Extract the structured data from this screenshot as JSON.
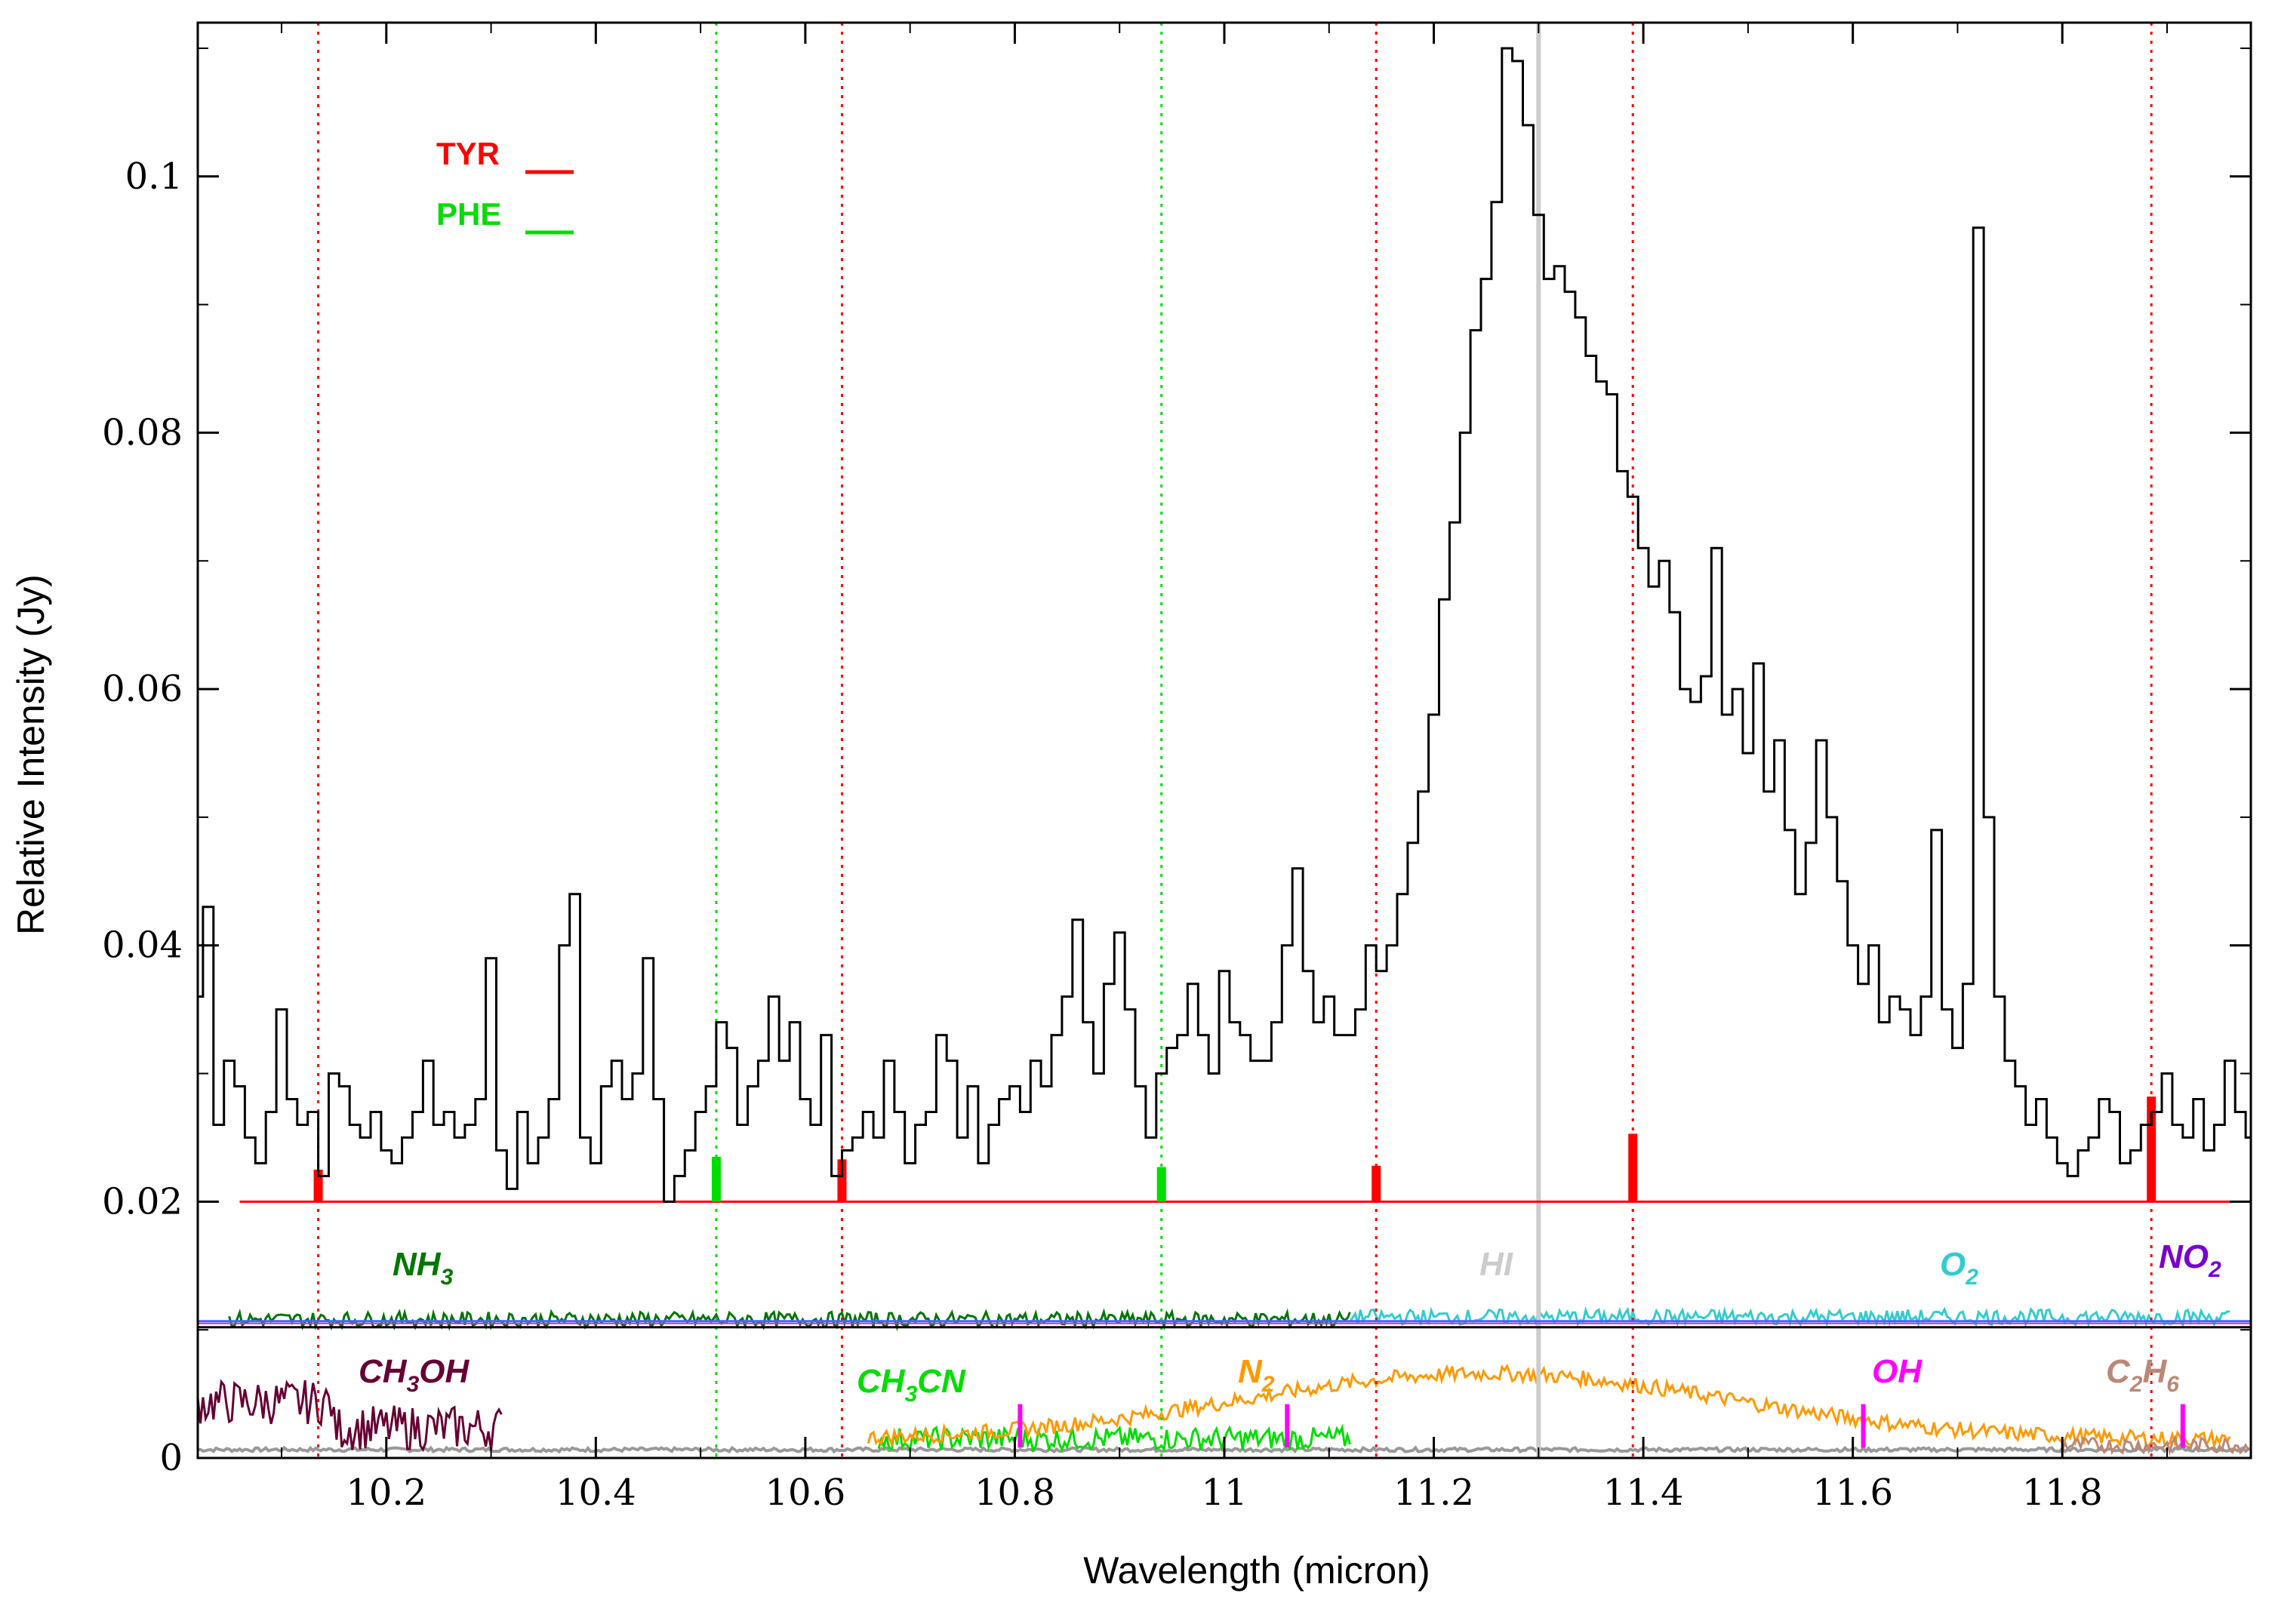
{
  "chart_data": {
    "type": "line",
    "xlabel": "Wavelength (micron)",
    "ylabel": "Relative Intensity (Jy)",
    "xlim": [
      10.02,
      11.98
    ],
    "ylim": [
      0,
      0.112
    ],
    "xticks": [
      10.2,
      10.4,
      10.6,
      10.8,
      11,
      11.2,
      11.4,
      11.6,
      11.8
    ],
    "xtick_labels": [
      "10.2",
      "10.4",
      "10.6",
      "10.8",
      "11",
      "11.2",
      "11.4",
      "11.6",
      "11.8"
    ],
    "yticks": [
      0,
      0.02,
      0.04,
      0.06,
      0.08,
      0.1
    ],
    "ytick_labels": [
      "0",
      "0.02",
      "0.04",
      "0.06",
      "0.08",
      "0.1"
    ],
    "grid": false,
    "legend": {
      "placement": "top-left",
      "entries": [
        {
          "label": "TYR",
          "color": "#ff0000"
        },
        {
          "label": "PHE",
          "color": "#00dd00"
        }
      ]
    },
    "observed_spectrum": {
      "style": "step",
      "color": "#000000",
      "points": [
        [
          10.02,
          0.036
        ],
        [
          10.03,
          0.043
        ],
        [
          10.04,
          0.026
        ],
        [
          10.05,
          0.031
        ],
        [
          10.06,
          0.029
        ],
        [
          10.07,
          0.025
        ],
        [
          10.08,
          0.023
        ],
        [
          10.09,
          0.027
        ],
        [
          10.1,
          0.035
        ],
        [
          10.11,
          0.028
        ],
        [
          10.12,
          0.026
        ],
        [
          10.13,
          0.027
        ],
        [
          10.14,
          0.022
        ],
        [
          10.15,
          0.03
        ],
        [
          10.16,
          0.029
        ],
        [
          10.17,
          0.026
        ],
        [
          10.18,
          0.025
        ],
        [
          10.19,
          0.027
        ],
        [
          10.2,
          0.024
        ],
        [
          10.21,
          0.023
        ],
        [
          10.22,
          0.025
        ],
        [
          10.23,
          0.027
        ],
        [
          10.24,
          0.031
        ],
        [
          10.25,
          0.026
        ],
        [
          10.26,
          0.027
        ],
        [
          10.27,
          0.025
        ],
        [
          10.28,
          0.026
        ],
        [
          10.29,
          0.028
        ],
        [
          10.3,
          0.039
        ],
        [
          10.31,
          0.024
        ],
        [
          10.32,
          0.021
        ],
        [
          10.33,
          0.027
        ],
        [
          10.34,
          0.023
        ],
        [
          10.35,
          0.025
        ],
        [
          10.36,
          0.028
        ],
        [
          10.37,
          0.04
        ],
        [
          10.38,
          0.044
        ],
        [
          10.39,
          0.025
        ],
        [
          10.4,
          0.023
        ],
        [
          10.41,
          0.029
        ],
        [
          10.42,
          0.031
        ],
        [
          10.43,
          0.028
        ],
        [
          10.44,
          0.03
        ],
        [
          10.45,
          0.039
        ],
        [
          10.46,
          0.028
        ],
        [
          10.47,
          0.02
        ],
        [
          10.48,
          0.022
        ],
        [
          10.49,
          0.024
        ],
        [
          10.5,
          0.027
        ],
        [
          10.51,
          0.029
        ],
        [
          10.52,
          0.034
        ],
        [
          10.53,
          0.032
        ],
        [
          10.54,
          0.026
        ],
        [
          10.55,
          0.029
        ],
        [
          10.56,
          0.031
        ],
        [
          10.57,
          0.036
        ],
        [
          10.58,
          0.031
        ],
        [
          10.59,
          0.034
        ],
        [
          10.6,
          0.028
        ],
        [
          10.61,
          0.026
        ],
        [
          10.62,
          0.033
        ],
        [
          10.63,
          0.022
        ],
        [
          10.64,
          0.024
        ],
        [
          10.65,
          0.025
        ],
        [
          10.66,
          0.027
        ],
        [
          10.67,
          0.025
        ],
        [
          10.68,
          0.031
        ],
        [
          10.69,
          0.027
        ],
        [
          10.7,
          0.023
        ],
        [
          10.71,
          0.026
        ],
        [
          10.72,
          0.027
        ],
        [
          10.73,
          0.033
        ],
        [
          10.74,
          0.031
        ],
        [
          10.75,
          0.025
        ],
        [
          10.76,
          0.029
        ],
        [
          10.77,
          0.023
        ],
        [
          10.78,
          0.026
        ],
        [
          10.79,
          0.028
        ],
        [
          10.8,
          0.029
        ],
        [
          10.81,
          0.027
        ],
        [
          10.82,
          0.031
        ],
        [
          10.83,
          0.029
        ],
        [
          10.84,
          0.033
        ],
        [
          10.85,
          0.036
        ],
        [
          10.86,
          0.042
        ],
        [
          10.87,
          0.034
        ],
        [
          10.88,
          0.03
        ],
        [
          10.89,
          0.037
        ],
        [
          10.9,
          0.041
        ],
        [
          10.91,
          0.035
        ],
        [
          10.92,
          0.029
        ],
        [
          10.93,
          0.025
        ],
        [
          10.94,
          0.03
        ],
        [
          10.95,
          0.032
        ],
        [
          10.96,
          0.033
        ],
        [
          10.97,
          0.037
        ],
        [
          10.98,
          0.033
        ],
        [
          10.99,
          0.03
        ],
        [
          11.0,
          0.038
        ],
        [
          11.01,
          0.034
        ],
        [
          11.02,
          0.033
        ],
        [
          11.03,
          0.031
        ],
        [
          11.04,
          0.031
        ],
        [
          11.05,
          0.034
        ],
        [
          11.06,
          0.04
        ],
        [
          11.07,
          0.046
        ],
        [
          11.08,
          0.038
        ],
        [
          11.09,
          0.034
        ],
        [
          11.1,
          0.036
        ],
        [
          11.11,
          0.033
        ],
        [
          11.12,
          0.033
        ],
        [
          11.13,
          0.035
        ],
        [
          11.14,
          0.04
        ],
        [
          11.15,
          0.038
        ],
        [
          11.16,
          0.04
        ],
        [
          11.17,
          0.044
        ],
        [
          11.18,
          0.048
        ],
        [
          11.19,
          0.052
        ],
        [
          11.2,
          0.058
        ],
        [
          11.21,
          0.067
        ],
        [
          11.22,
          0.073
        ],
        [
          11.23,
          0.08
        ],
        [
          11.24,
          0.088
        ],
        [
          11.25,
          0.092
        ],
        [
          11.26,
          0.098
        ],
        [
          11.27,
          0.11
        ],
        [
          11.28,
          0.109
        ],
        [
          11.29,
          0.104
        ],
        [
          11.3,
          0.097
        ],
        [
          11.31,
          0.092
        ],
        [
          11.32,
          0.093
        ],
        [
          11.33,
          0.091
        ],
        [
          11.34,
          0.089
        ],
        [
          11.35,
          0.086
        ],
        [
          11.36,
          0.084
        ],
        [
          11.37,
          0.083
        ],
        [
          11.38,
          0.077
        ],
        [
          11.39,
          0.075
        ],
        [
          11.4,
          0.071
        ],
        [
          11.41,
          0.068
        ],
        [
          11.42,
          0.07
        ],
        [
          11.43,
          0.066
        ],
        [
          11.44,
          0.06
        ],
        [
          11.45,
          0.059
        ],
        [
          11.46,
          0.061
        ],
        [
          11.47,
          0.071
        ],
        [
          11.48,
          0.058
        ],
        [
          11.49,
          0.06
        ],
        [
          11.5,
          0.055
        ],
        [
          11.51,
          0.062
        ],
        [
          11.52,
          0.052
        ],
        [
          11.53,
          0.056
        ],
        [
          11.54,
          0.049
        ],
        [
          11.55,
          0.044
        ],
        [
          11.56,
          0.048
        ],
        [
          11.57,
          0.056
        ],
        [
          11.58,
          0.05
        ],
        [
          11.59,
          0.045
        ],
        [
          11.6,
          0.04
        ],
        [
          11.61,
          0.037
        ],
        [
          11.62,
          0.04
        ],
        [
          11.63,
          0.034
        ],
        [
          11.64,
          0.036
        ],
        [
          11.65,
          0.035
        ],
        [
          11.66,
          0.033
        ],
        [
          11.67,
          0.036
        ],
        [
          11.68,
          0.049
        ],
        [
          11.69,
          0.035
        ],
        [
          11.7,
          0.032
        ],
        [
          11.71,
          0.037
        ],
        [
          11.72,
          0.096
        ],
        [
          11.73,
          0.05
        ],
        [
          11.74,
          0.036
        ],
        [
          11.75,
          0.031
        ],
        [
          11.76,
          0.029
        ],
        [
          11.77,
          0.026
        ],
        [
          11.78,
          0.028
        ],
        [
          11.79,
          0.025
        ],
        [
          11.8,
          0.023
        ],
        [
          11.81,
          0.022
        ],
        [
          11.82,
          0.024
        ],
        [
          11.83,
          0.025
        ],
        [
          11.84,
          0.028
        ],
        [
          11.85,
          0.027
        ],
        [
          11.86,
          0.023
        ],
        [
          11.87,
          0.024
        ],
        [
          11.88,
          0.026
        ],
        [
          11.89,
          0.027
        ],
        [
          11.9,
          0.03
        ],
        [
          11.91,
          0.026
        ],
        [
          11.92,
          0.025
        ],
        [
          11.93,
          0.028
        ],
        [
          11.94,
          0.024
        ],
        [
          11.95,
          0.026
        ],
        [
          11.96,
          0.031
        ],
        [
          11.97,
          0.027
        ],
        [
          11.98,
          0.025
        ]
      ]
    },
    "reference_lines": {
      "baseline_y": 0.02,
      "baseline_x_range": [
        10.06,
        11.96
      ],
      "tyr": {
        "color": "#ff0000",
        "x": [
          10.135,
          10.635,
          11.145,
          11.39,
          11.885
        ],
        "heights": [
          0.0025,
          0.0033,
          0.0028,
          0.0053,
          0.0082
        ]
      },
      "phe": {
        "color": "#00dd00",
        "x": [
          10.515,
          10.94
        ],
        "heights": [
          0.0035,
          0.0027
        ]
      },
      "hi_line": {
        "x": 11.3,
        "color": "#cccccc"
      }
    },
    "species_panel": {
      "separator_y": 0.0102,
      "labels": [
        {
          "name": "NH",
          "sub": "3",
          "color": "#007700"
        },
        {
          "name": "HI",
          "sub": "",
          "color": "#cccccc"
        },
        {
          "name": "O",
          "sub": "2",
          "color": "#33cccc"
        },
        {
          "name": "NO",
          "sub": "2",
          "color": "#7700cc"
        },
        {
          "name": "CH",
          "sub": "3",
          "after": "OH",
          "color": "#660033"
        },
        {
          "name": "CH",
          "sub": "3",
          "after": "CN",
          "color": "#00dd00"
        },
        {
          "name": "N",
          "sub": "2",
          "color": "#ff9900"
        },
        {
          "name": "OH",
          "sub": "",
          "color": "#ff00ff"
        },
        {
          "name": "C",
          "sub": "2",
          "after": "H",
          "sub2": "6",
          "color": "#bb8877"
        }
      ]
    }
  }
}
